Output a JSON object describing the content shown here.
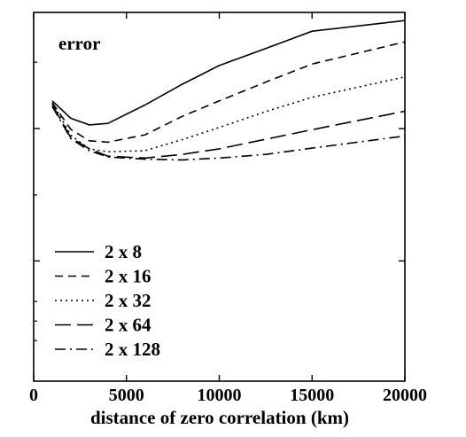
{
  "chart_data": {
    "type": "line",
    "title": "error",
    "xlabel": "distance of zero correlation (km)",
    "ylabel": "",
    "xlim": [
      0,
      20000
    ],
    "ylim": [
      0,
      1
    ],
    "x_ticks": [
      0,
      5000,
      10000,
      15000,
      20000
    ],
    "x_tick_labels": [
      "0",
      "5000",
      "10000",
      "15000",
      "20000"
    ],
    "y_ticks_major": [
      0.326,
      0.685
    ],
    "y_ticks_minor": [
      0.11,
      0.163,
      0.216,
      0.505,
      0.865
    ],
    "y_tick_labels_shown": false,
    "grid": false,
    "legend_position": "bottom-left",
    "series": [
      {
        "name": "2 x 8",
        "style": "solid",
        "x": [
          1000,
          2000,
          3000,
          4000,
          6000,
          8000,
          10000,
          12500,
          15000,
          20000
        ],
        "y": [
          0.76,
          0.713,
          0.695,
          0.699,
          0.749,
          0.805,
          0.856,
          0.902,
          0.949,
          0.978
        ]
      },
      {
        "name": "2 x 16",
        "style": "dashed",
        "x": [
          1000,
          2000,
          3000,
          4000,
          6000,
          8000,
          10000,
          12500,
          15000,
          20000
        ],
        "y": [
          0.755,
          0.683,
          0.652,
          0.648,
          0.668,
          0.718,
          0.76,
          0.811,
          0.86,
          0.92
        ]
      },
      {
        "name": "2 x 32",
        "style": "dotted",
        "x": [
          1000,
          2000,
          3000,
          4000,
          6000,
          8000,
          10000,
          12500,
          15000,
          20000
        ],
        "y": [
          0.755,
          0.667,
          0.63,
          0.622,
          0.625,
          0.655,
          0.688,
          0.731,
          0.77,
          0.825
        ]
      },
      {
        "name": "2 x 64",
        "style": "long-dashed",
        "x": [
          1000,
          2000,
          3000,
          4000,
          6000,
          8000,
          10000,
          12500,
          15000,
          20000
        ],
        "y": [
          0.75,
          0.66,
          0.63,
          0.61,
          0.605,
          0.615,
          0.63,
          0.656,
          0.682,
          0.732
        ]
      },
      {
        "name": "2 x 128",
        "style": "dash-dot",
        "x": [
          1000,
          2000,
          3000,
          4000,
          6000,
          8000,
          10000,
          12500,
          15000,
          20000
        ],
        "y": [
          0.745,
          0.658,
          0.625,
          0.608,
          0.602,
          0.6,
          0.605,
          0.615,
          0.632,
          0.665
        ]
      }
    ]
  }
}
